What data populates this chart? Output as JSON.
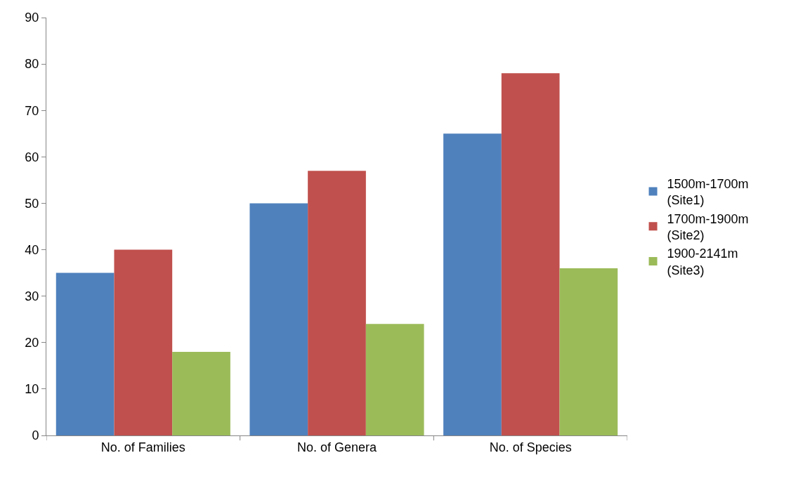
{
  "chart_data": {
    "type": "bar",
    "categories": [
      "No. of Families",
      "No. of Genera",
      "No. of Species"
    ],
    "series": [
      {
        "name": "1500m-1700m (Site1)",
        "color": "#4f81bd",
        "values": [
          35,
          50,
          65
        ]
      },
      {
        "name": "1700m-1900m (Site2)",
        "color": "#c0504d",
        "values": [
          40,
          57,
          78
        ]
      },
      {
        "name": "1900-2141m (Site3)",
        "color": "#9bbb59",
        "values": [
          18,
          24,
          36
        ]
      }
    ],
    "ylim": [
      0,
      90
    ],
    "yticks": [
      0,
      10,
      20,
      30,
      40,
      50,
      60,
      70,
      80,
      90
    ],
    "grid": false,
    "legend": "right"
  }
}
